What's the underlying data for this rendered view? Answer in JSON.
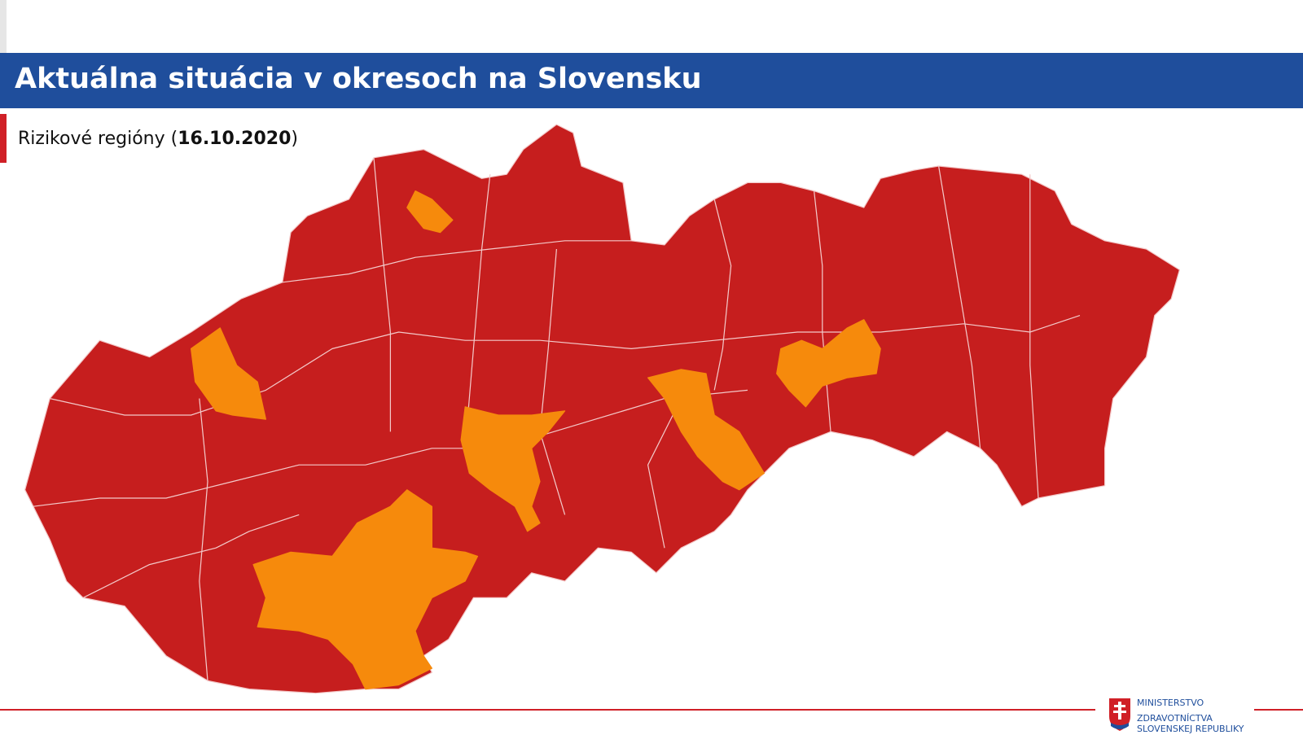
{
  "header": {
    "title": "Aktuálna situácia v okresoch na Slovensku"
  },
  "subtitle": {
    "prefix": "Rizikové regióny (",
    "date": "16.10.2020",
    "suffix": ")"
  },
  "logo": {
    "lines": [
      "MINISTERSTVO",
      "ZDRAVOTNÍCTVA",
      "SLOVENSKEJ REPUBLIKY"
    ]
  }
}
